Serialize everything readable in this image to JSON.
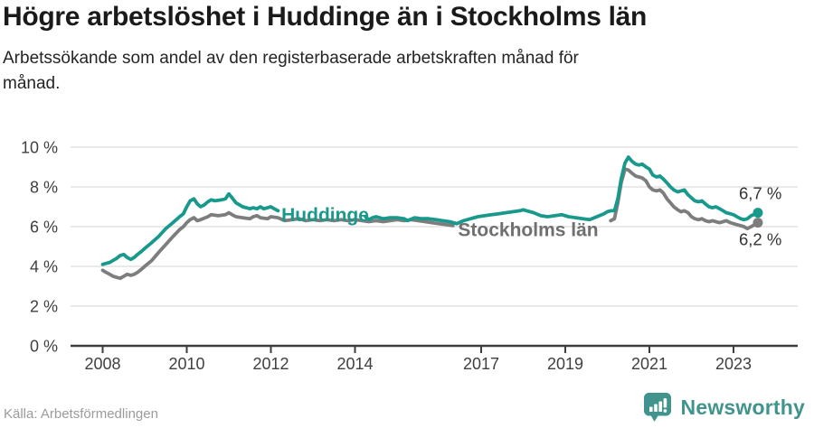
{
  "header": {
    "title": "Högre arbetslöshet i Huddinge än i Stockholms län",
    "subtitle": "Arbetssökande som andel av den registerbaserade arbetskraften månad för\nmånad."
  },
  "footer": {
    "source": "Källa: Arbetsförmedlingen",
    "logo_text": "Newsworthy",
    "logo_icon": "newsworthy-bar-chart-bubble-icon"
  },
  "colors": {
    "huddinge_teal": "#18998b",
    "stockholm_gray": "#7d7d7d",
    "stockholm_label_gray": "#6f6f6f",
    "axis_text": "#404040",
    "gridline": "#dcdcdc",
    "axis_line": "#3d3d3d",
    "end_label_text": "#333333",
    "logo_teal": "#40948d"
  },
  "chart_data": {
    "type": "line",
    "title": "Högre arbetslöshet i Huddinge än i Stockholms län",
    "subtitle": "Arbetssökande som andel av den registerbaserade arbetskraften månad för månad.",
    "unit": "%",
    "xlabel": "",
    "ylabel": "",
    "ylim": [
      0,
      10
    ],
    "xlim": [
      2008,
      2023.7
    ],
    "grid": true,
    "legend_position": "inline-labels",
    "y_ticks": [
      0,
      2,
      4,
      6,
      8,
      10
    ],
    "y_tick_suffix": " %",
    "x_ticks": [
      2008,
      2010,
      2012,
      2014,
      2017,
      2019,
      2021,
      2023
    ],
    "series": [
      {
        "name": "Stockholms län",
        "color": "#7d7d7d",
        "label_color": "#6f6f6f",
        "end_label": "6,2 %",
        "end_label_position": "below",
        "last_value": 6.2,
        "label_pos": {
          "x": 2016.45,
          "y": 5.85
        },
        "label_gap": [
          2016.4,
          2020.02
        ],
        "points": [
          [
            2008.0,
            3.8
          ],
          [
            2008.08,
            3.7
          ],
          [
            2008.17,
            3.6
          ],
          [
            2008.25,
            3.5
          ],
          [
            2008.33,
            3.45
          ],
          [
            2008.42,
            3.4
          ],
          [
            2008.5,
            3.5
          ],
          [
            2008.58,
            3.6
          ],
          [
            2008.67,
            3.55
          ],
          [
            2008.75,
            3.6
          ],
          [
            2008.83,
            3.7
          ],
          [
            2008.92,
            3.85
          ],
          [
            2009.0,
            4.0
          ],
          [
            2009.17,
            4.3
          ],
          [
            2009.33,
            4.7
          ],
          [
            2009.5,
            5.1
          ],
          [
            2009.67,
            5.5
          ],
          [
            2009.83,
            5.85
          ],
          [
            2009.92,
            6.0
          ],
          [
            2010.0,
            6.2
          ],
          [
            2010.08,
            6.35
          ],
          [
            2010.17,
            6.45
          ],
          [
            2010.25,
            6.3
          ],
          [
            2010.33,
            6.35
          ],
          [
            2010.5,
            6.5
          ],
          [
            2010.58,
            6.6
          ],
          [
            2010.75,
            6.55
          ],
          [
            2010.92,
            6.6
          ],
          [
            2011.0,
            6.7
          ],
          [
            2011.08,
            6.6
          ],
          [
            2011.17,
            6.5
          ],
          [
            2011.33,
            6.45
          ],
          [
            2011.5,
            6.4
          ],
          [
            2011.58,
            6.5
          ],
          [
            2011.67,
            6.55
          ],
          [
            2011.75,
            6.45
          ],
          [
            2011.92,
            6.4
          ],
          [
            2012.0,
            6.5
          ],
          [
            2012.17,
            6.45
          ],
          [
            2012.33,
            6.3
          ],
          [
            2012.5,
            6.35
          ],
          [
            2012.67,
            6.4
          ],
          [
            2012.83,
            6.3
          ],
          [
            2013.0,
            6.35
          ],
          [
            2013.17,
            6.3
          ],
          [
            2013.33,
            6.35
          ],
          [
            2013.5,
            6.3
          ],
          [
            2013.67,
            6.35
          ],
          [
            2013.83,
            6.3
          ],
          [
            2014.0,
            6.35
          ],
          [
            2014.17,
            6.3
          ],
          [
            2014.33,
            6.25
          ],
          [
            2014.5,
            6.3
          ],
          [
            2014.67,
            6.25
          ],
          [
            2014.83,
            6.3
          ],
          [
            2015.0,
            6.35
          ],
          [
            2015.17,
            6.3
          ],
          [
            2015.33,
            6.35
          ],
          [
            2015.5,
            6.3
          ],
          [
            2015.67,
            6.25
          ],
          [
            2015.83,
            6.2
          ],
          [
            2016.0,
            6.15
          ],
          [
            2016.17,
            6.1
          ],
          [
            2016.33,
            6.05
          ],
          [
            2016.5,
            6.0
          ],
          [
            2016.75,
            6.0
          ],
          [
            2017.0,
            6.05
          ],
          [
            2017.25,
            6.1
          ],
          [
            2017.5,
            6.1
          ],
          [
            2017.75,
            6.05
          ],
          [
            2018.0,
            6.1
          ],
          [
            2018.25,
            6.05
          ],
          [
            2018.5,
            6.0
          ],
          [
            2018.75,
            6.0
          ],
          [
            2019.0,
            6.0
          ],
          [
            2019.25,
            6.0
          ],
          [
            2019.5,
            6.05
          ],
          [
            2019.75,
            6.1
          ],
          [
            2019.92,
            6.2
          ],
          [
            2020.08,
            6.3
          ],
          [
            2020.17,
            6.4
          ],
          [
            2020.25,
            7.2
          ],
          [
            2020.33,
            8.2
          ],
          [
            2020.42,
            8.9
          ],
          [
            2020.5,
            8.85
          ],
          [
            2020.58,
            8.7
          ],
          [
            2020.67,
            8.55
          ],
          [
            2020.75,
            8.5
          ],
          [
            2020.83,
            8.45
          ],
          [
            2020.92,
            8.3
          ],
          [
            2021.0,
            8.0
          ],
          [
            2021.08,
            7.85
          ],
          [
            2021.17,
            7.8
          ],
          [
            2021.25,
            7.85
          ],
          [
            2021.33,
            7.7
          ],
          [
            2021.42,
            7.4
          ],
          [
            2021.5,
            7.2
          ],
          [
            2021.58,
            7.0
          ],
          [
            2021.67,
            6.85
          ],
          [
            2021.75,
            6.75
          ],
          [
            2021.83,
            6.8
          ],
          [
            2021.92,
            6.7
          ],
          [
            2022.0,
            6.5
          ],
          [
            2022.08,
            6.4
          ],
          [
            2022.17,
            6.35
          ],
          [
            2022.25,
            6.4
          ],
          [
            2022.33,
            6.3
          ],
          [
            2022.42,
            6.25
          ],
          [
            2022.5,
            6.3
          ],
          [
            2022.58,
            6.25
          ],
          [
            2022.67,
            6.2
          ],
          [
            2022.75,
            6.25
          ],
          [
            2022.83,
            6.3
          ],
          [
            2022.92,
            6.2
          ],
          [
            2023.0,
            6.15
          ],
          [
            2023.08,
            6.1
          ],
          [
            2023.17,
            6.05
          ],
          [
            2023.25,
            6.0
          ],
          [
            2023.33,
            5.9
          ],
          [
            2023.42,
            6.0
          ],
          [
            2023.58,
            6.2
          ]
        ]
      },
      {
        "name": "Huddinge",
        "color": "#18998b",
        "label_color": "#18998b",
        "end_label": "6,7 %",
        "end_label_position": "above",
        "last_value": 6.7,
        "label_pos": {
          "x": 2012.25,
          "y": 6.6
        },
        "label_gap": [
          2012.2,
          2014.2
        ],
        "points": [
          [
            2008.0,
            4.1
          ],
          [
            2008.08,
            4.15
          ],
          [
            2008.17,
            4.2
          ],
          [
            2008.25,
            4.3
          ],
          [
            2008.33,
            4.4
          ],
          [
            2008.42,
            4.55
          ],
          [
            2008.5,
            4.6
          ],
          [
            2008.58,
            4.45
          ],
          [
            2008.67,
            4.35
          ],
          [
            2008.75,
            4.45
          ],
          [
            2008.83,
            4.6
          ],
          [
            2008.92,
            4.75
          ],
          [
            2009.0,
            4.9
          ],
          [
            2009.17,
            5.2
          ],
          [
            2009.33,
            5.5
          ],
          [
            2009.5,
            5.9
          ],
          [
            2009.67,
            6.2
          ],
          [
            2009.83,
            6.5
          ],
          [
            2009.92,
            6.65
          ],
          [
            2010.0,
            7.0
          ],
          [
            2010.08,
            7.3
          ],
          [
            2010.17,
            7.4
          ],
          [
            2010.25,
            7.15
          ],
          [
            2010.33,
            7.0
          ],
          [
            2010.42,
            7.1
          ],
          [
            2010.5,
            7.25
          ],
          [
            2010.58,
            7.35
          ],
          [
            2010.67,
            7.3
          ],
          [
            2010.83,
            7.35
          ],
          [
            2010.92,
            7.4
          ],
          [
            2011.0,
            7.65
          ],
          [
            2011.08,
            7.45
          ],
          [
            2011.17,
            7.2
          ],
          [
            2011.25,
            7.1
          ],
          [
            2011.33,
            7.0
          ],
          [
            2011.42,
            6.95
          ],
          [
            2011.5,
            6.9
          ],
          [
            2011.58,
            6.95
          ],
          [
            2011.67,
            6.9
          ],
          [
            2011.75,
            7.0
          ],
          [
            2011.83,
            6.9
          ],
          [
            2011.92,
            6.95
          ],
          [
            2012.0,
            7.0
          ],
          [
            2012.08,
            6.9
          ],
          [
            2012.17,
            6.8
          ],
          [
            2012.33,
            6.7
          ],
          [
            2012.5,
            6.6
          ],
          [
            2012.67,
            6.55
          ],
          [
            2012.83,
            6.5
          ],
          [
            2013.0,
            6.55
          ],
          [
            2013.17,
            6.5
          ],
          [
            2013.33,
            6.45
          ],
          [
            2013.5,
            6.5
          ],
          [
            2013.67,
            6.45
          ],
          [
            2013.83,
            6.5
          ],
          [
            2014.0,
            6.55
          ],
          [
            2014.17,
            6.55
          ],
          [
            2014.25,
            6.5
          ],
          [
            2014.33,
            6.35
          ],
          [
            2014.42,
            6.45
          ],
          [
            2014.5,
            6.5
          ],
          [
            2014.58,
            6.45
          ],
          [
            2014.67,
            6.4
          ],
          [
            2014.83,
            6.45
          ],
          [
            2015.0,
            6.45
          ],
          [
            2015.17,
            6.4
          ],
          [
            2015.25,
            6.3
          ],
          [
            2015.42,
            6.45
          ],
          [
            2015.58,
            6.4
          ],
          [
            2015.75,
            6.4
          ],
          [
            2015.92,
            6.35
          ],
          [
            2016.08,
            6.3
          ],
          [
            2016.25,
            6.25
          ],
          [
            2016.42,
            6.15
          ],
          [
            2016.58,
            6.3
          ],
          [
            2016.75,
            6.4
          ],
          [
            2016.92,
            6.5
          ],
          [
            2017.08,
            6.55
          ],
          [
            2017.25,
            6.6
          ],
          [
            2017.42,
            6.65
          ],
          [
            2017.58,
            6.7
          ],
          [
            2017.75,
            6.75
          ],
          [
            2017.92,
            6.8
          ],
          [
            2018.0,
            6.85
          ],
          [
            2018.08,
            6.8
          ],
          [
            2018.25,
            6.7
          ],
          [
            2018.42,
            6.55
          ],
          [
            2018.58,
            6.5
          ],
          [
            2018.75,
            6.55
          ],
          [
            2018.92,
            6.6
          ],
          [
            2019.08,
            6.5
          ],
          [
            2019.25,
            6.45
          ],
          [
            2019.42,
            6.4
          ],
          [
            2019.58,
            6.35
          ],
          [
            2019.75,
            6.5
          ],
          [
            2019.92,
            6.65
          ],
          [
            2020.0,
            6.75
          ],
          [
            2020.08,
            6.8
          ],
          [
            2020.17,
            6.8
          ],
          [
            2020.25,
            7.4
          ],
          [
            2020.33,
            8.4
          ],
          [
            2020.42,
            9.2
          ],
          [
            2020.5,
            9.5
          ],
          [
            2020.58,
            9.3
          ],
          [
            2020.67,
            9.15
          ],
          [
            2020.75,
            9.1
          ],
          [
            2020.83,
            9.15
          ],
          [
            2020.92,
            9.0
          ],
          [
            2021.0,
            8.9
          ],
          [
            2021.08,
            8.6
          ],
          [
            2021.17,
            8.5
          ],
          [
            2021.25,
            8.55
          ],
          [
            2021.33,
            8.4
          ],
          [
            2021.42,
            8.2
          ],
          [
            2021.5,
            8.0
          ],
          [
            2021.58,
            7.85
          ],
          [
            2021.67,
            7.75
          ],
          [
            2021.75,
            7.8
          ],
          [
            2021.83,
            7.85
          ],
          [
            2021.92,
            7.6
          ],
          [
            2022.0,
            7.45
          ],
          [
            2022.08,
            7.3
          ],
          [
            2022.17,
            7.25
          ],
          [
            2022.25,
            7.3
          ],
          [
            2022.33,
            7.15
          ],
          [
            2022.42,
            7.0
          ],
          [
            2022.5,
            6.95
          ],
          [
            2022.58,
            7.0
          ],
          [
            2022.67,
            6.9
          ],
          [
            2022.75,
            6.8
          ],
          [
            2022.83,
            6.7
          ],
          [
            2022.92,
            6.65
          ],
          [
            2023.0,
            6.6
          ],
          [
            2023.08,
            6.5
          ],
          [
            2023.17,
            6.4
          ],
          [
            2023.25,
            6.35
          ],
          [
            2023.33,
            6.4
          ],
          [
            2023.42,
            6.55
          ],
          [
            2023.58,
            6.7
          ]
        ]
      }
    ]
  }
}
